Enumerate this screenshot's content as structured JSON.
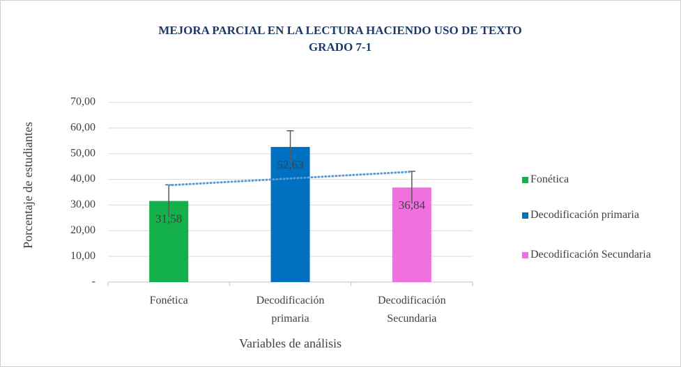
{
  "chart_data": {
    "type": "bar",
    "title": "MEJORA PARCIAL EN LA LECTURA HACIENDO USO DE TEXTO GRADO 7-1",
    "xlabel": "Variables de análisis",
    "ylabel": "Porcentaje de estudiantes",
    "categories": [
      "Fonética",
      "Decodificación primaria",
      "Decodificación Secundaria"
    ],
    "values": [
      31.58,
      52.63,
      36.84
    ],
    "value_labels": [
      "31,58",
      "52,63",
      "36,84"
    ],
    "errors": [
      6.3,
      6.3,
      6.3
    ],
    "colors": [
      "#13b04b",
      "#0070c0",
      "#f070e0"
    ],
    "ylim": [
      0,
      70
    ],
    "yticks": [
      {
        "value": 0,
        "label": "-"
      },
      {
        "value": 10,
        "label": "10,00"
      },
      {
        "value": 20,
        "label": "20,00"
      },
      {
        "value": 30,
        "label": "30,00"
      },
      {
        "value": 40,
        "label": "40,00"
      },
      {
        "value": 50,
        "label": "50,00"
      },
      {
        "value": 60,
        "label": "60,00"
      },
      {
        "value": 70,
        "label": "70,00"
      }
    ],
    "grid": true,
    "trendline": "linear",
    "trendline_color": "#5b9bd5",
    "legend": "right"
  }
}
